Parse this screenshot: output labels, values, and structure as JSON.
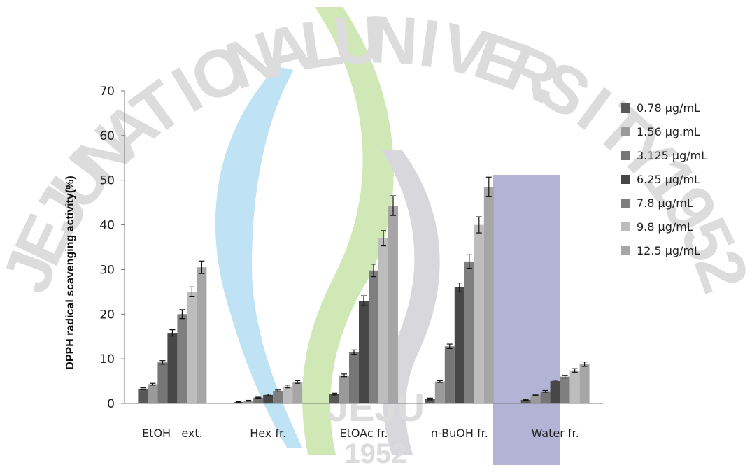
{
  "watermark": {
    "letters": [
      "J",
      "E",
      "J",
      "U",
      "N",
      "A",
      "T",
      "I",
      "O",
      "N",
      "A",
      "L",
      "U",
      "N",
      "I",
      "V",
      "E",
      "R",
      "S",
      "I",
      "T",
      "Y",
      "1",
      "9",
      "5",
      "2"
    ],
    "center_text": "JEJU",
    "center_year": "1952",
    "colors": {
      "blue": "#bfe3f5",
      "green": "#cfe8b5",
      "gray": "#d8d8dc",
      "purple": "#b3b3d6"
    }
  },
  "chart_data": {
    "type": "bar",
    "title": "",
    "xlabel": "",
    "ylabel": "DPPH radical scavenging activity(%)",
    "ylim": [
      0,
      70
    ],
    "yticks": [
      0,
      10,
      20,
      30,
      40,
      50,
      60,
      70
    ],
    "categories": [
      "EtOH   ext.",
      "Hex fr.",
      "EtOAc fr.",
      "n-BuOH fr.",
      "Water fr."
    ],
    "legend_position": "right",
    "series": [
      {
        "name": "0.78 μg/mL",
        "color": "#585858",
        "values": [
          3.3,
          0.3,
          2.1,
          1.0,
          0.8
        ],
        "errors": [
          0.2,
          0.1,
          0.2,
          0.2,
          0.1
        ]
      },
      {
        "name": "1.56 μg.mL",
        "color": "#9a9a9a",
        "values": [
          4.3,
          0.6,
          6.3,
          4.9,
          1.8
        ],
        "errors": [
          0.2,
          0.1,
          0.3,
          0.2,
          0.1
        ]
      },
      {
        "name": "3.125 μg/mL",
        "color": "#767676",
        "values": [
          9.2,
          1.3,
          11.5,
          12.8,
          2.7
        ],
        "errors": [
          0.4,
          0.1,
          0.5,
          0.5,
          0.2
        ]
      },
      {
        "name": "6.25 μg/mL",
        "color": "#474747",
        "values": [
          15.8,
          1.9,
          23.0,
          26.0,
          5.0
        ],
        "errors": [
          0.7,
          0.2,
          1.1,
          1.0,
          0.2
        ]
      },
      {
        "name": "7.8 μg/mL",
        "color": "#7f7f7f",
        "values": [
          20.0,
          2.8,
          29.8,
          31.8,
          6.0
        ],
        "errors": [
          1.0,
          0.2,
          1.4,
          1.5,
          0.3
        ]
      },
      {
        "name": "9.8 μg/mL",
        "color": "#bdbdbd",
        "values": [
          25.0,
          3.8,
          37.0,
          40.0,
          7.4
        ],
        "errors": [
          1.1,
          0.3,
          1.7,
          1.8,
          0.4
        ]
      },
      {
        "name": "12.5 μg/mL",
        "color": "#a6a6a6",
        "values": [
          30.5,
          4.8,
          44.3,
          48.5,
          8.8
        ],
        "errors": [
          1.4,
          0.3,
          2.2,
          2.2,
          0.5
        ]
      }
    ]
  }
}
